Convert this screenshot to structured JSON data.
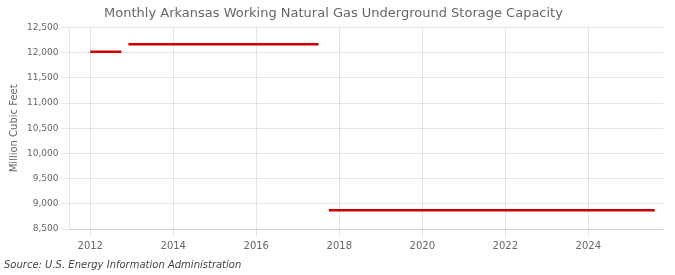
{
  "chart_data": {
    "type": "line",
    "title": "Monthly Arkansas Working Natural Gas Underground Storage Capacity",
    "ylabel": "Million Cubic Feet",
    "source": "Source: U.S. Energy Information Administration",
    "color": "#cc0000",
    "segments": [
      {
        "x_start": 2012.0,
        "x_end": 2012.75,
        "y": 12020
      },
      {
        "x_start": 2012.92,
        "x_end": 2017.5,
        "y": 12170
      },
      {
        "x_start": 2017.75,
        "x_end": 2025.6,
        "y": 8870
      }
    ],
    "xlim": [
      2011.5,
      2025.8
    ],
    "xticks": [
      2012,
      2014,
      2016,
      2018,
      2020,
      2022,
      2024
    ],
    "ylim": [
      8500,
      12500
    ],
    "yticks": [
      {
        "value": 8500,
        "label": "8,500"
      },
      {
        "value": 9000,
        "label": "9,000"
      },
      {
        "value": 9500,
        "label": "9,500"
      },
      {
        "value": 10000,
        "label": "10,000"
      },
      {
        "value": 10500,
        "label": "10,500"
      },
      {
        "value": 11000,
        "label": "11,000"
      },
      {
        "value": 11500,
        "label": "11,500"
      },
      {
        "value": 12000,
        "label": "12,000"
      },
      {
        "value": 12500,
        "label": "12,500"
      }
    ],
    "grid": true
  }
}
